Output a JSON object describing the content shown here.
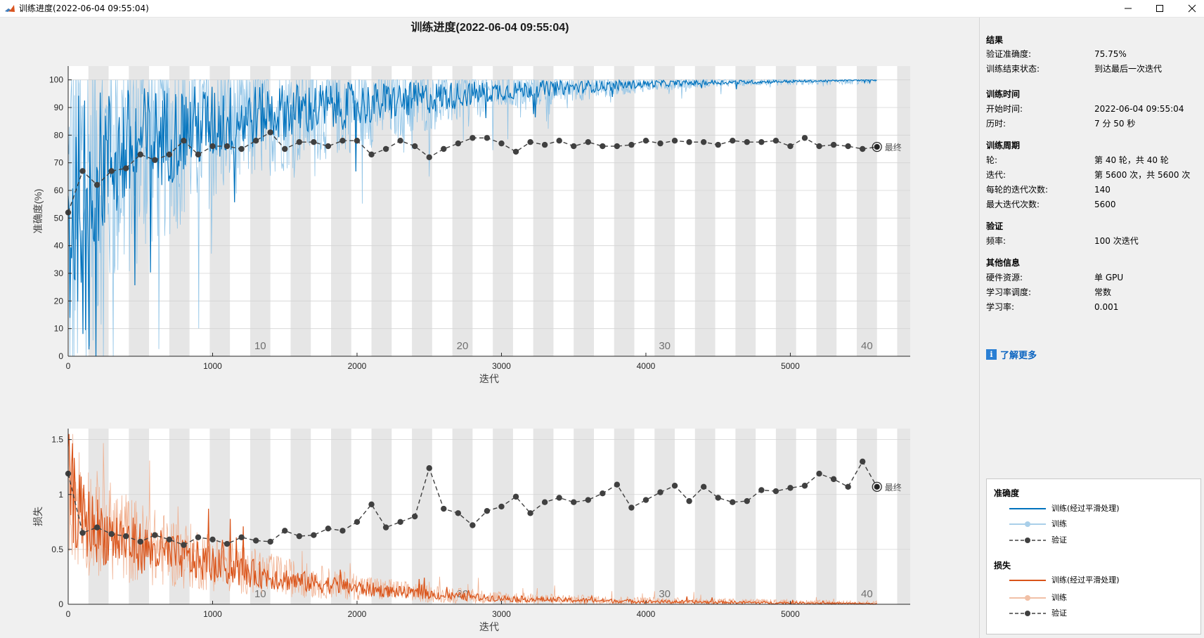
{
  "window": {
    "title": "训练进度(2022-06-04 09:55:04)",
    "controls": [
      "minimize-icon",
      "maximize-icon",
      "close-icon"
    ]
  },
  "figure": {
    "title": "训练进度(2022-06-04 09:55:04)",
    "final_label": "最终"
  },
  "colors": {
    "accuracy_train": "#0072bd",
    "accuracy_train_raw": "#8fc3e6",
    "loss_train": "#d95319",
    "loss_train_raw": "#f0b090",
    "validation": "#404040",
    "epoch_band": "#e6e6e6"
  },
  "chart_data": [
    {
      "type": "line",
      "title": "",
      "xlabel": "迭代",
      "ylabel": "准确度(%)",
      "xlim": [
        0,
        5830
      ],
      "ylim": [
        0,
        105
      ],
      "xticks": [
        0,
        1000,
        2000,
        3000,
        4000,
        5000
      ],
      "yticks": [
        0,
        10,
        20,
        30,
        40,
        50,
        60,
        70,
        80,
        90,
        100
      ],
      "epoch_labels": [
        10,
        20,
        30,
        40
      ],
      "iterations_per_epoch": 140,
      "grid": true,
      "series": [
        {
          "name": "训练(经过平滑处理)",
          "x": [
            0,
            50,
            100,
            150,
            200,
            300,
            400,
            500,
            600,
            700,
            800,
            1000,
            1200,
            1400,
            1600,
            1800,
            2000,
            2200,
            2400,
            2600,
            2800,
            3000,
            3200,
            3400,
            3600,
            3800,
            4000,
            4400,
            4800,
            5200,
            5600
          ],
          "values": [
            45,
            55,
            62,
            66,
            68,
            72,
            74,
            77,
            79,
            80,
            82,
            84,
            86,
            88,
            89,
            90,
            91,
            92,
            93,
            94,
            95,
            96,
            96.5,
            97,
            97.5,
            98,
            98.5,
            99,
            99.3,
            99.6,
            100
          ]
        },
        {
          "name": "验证",
          "x": [
            0,
            100,
            200,
            300,
            400,
            500,
            600,
            700,
            800,
            900,
            1000,
            1100,
            1200,
            1300,
            1400,
            1500,
            1600,
            1700,
            1800,
            1900,
            2000,
            2100,
            2200,
            2300,
            2400,
            2500,
            2600,
            2700,
            2800,
            2900,
            3000,
            3100,
            3200,
            3300,
            3400,
            3500,
            3600,
            3700,
            3800,
            3900,
            4000,
            4100,
            4200,
            4300,
            4400,
            4500,
            4600,
            4700,
            4800,
            4900,
            5000,
            5100,
            5200,
            5300,
            5400,
            5500,
            5600
          ],
          "values": [
            52,
            67,
            62,
            67,
            68,
            73,
            71,
            73,
            78,
            73,
            76,
            76,
            75,
            78,
            81,
            75,
            77.5,
            77.5,
            76,
            78,
            78,
            73,
            75,
            78,
            76,
            72,
            75,
            77,
            79,
            79,
            77,
            74,
            77.5,
            76.5,
            78,
            76,
            77.5,
            76,
            76,
            76.5,
            78,
            77,
            78,
            77.5,
            77.5,
            76.5,
            78,
            77.5,
            77.5,
            78,
            76,
            79,
            76,
            76.5,
            76,
            75,
            75.75
          ]
        }
      ],
      "final_value": 75.75
    },
    {
      "type": "line",
      "title": "",
      "xlabel": "迭代",
      "ylabel": "损失",
      "xlim": [
        0,
        5830
      ],
      "ylim": [
        0,
        1.6
      ],
      "xticks": [
        0,
        1000,
        2000,
        3000,
        4000,
        5000
      ],
      "yticks": [
        0,
        0.5,
        1,
        1.5
      ],
      "epoch_labels": [
        10,
        20,
        30,
        40
      ],
      "iterations_per_epoch": 140,
      "grid": true,
      "series": [
        {
          "name": "训练(经过平滑处理)",
          "x": [
            0,
            50,
            100,
            200,
            300,
            400,
            500,
            600,
            800,
            1000,
            1200,
            1400,
            1600,
            1800,
            2000,
            2200,
            2400,
            2600,
            2800,
            3000,
            3200,
            3400,
            3600,
            3800,
            4000,
            4400,
            4800,
            5200,
            5600
          ],
          "values": [
            1.2,
            0.9,
            0.78,
            0.68,
            0.62,
            0.57,
            0.52,
            0.48,
            0.42,
            0.36,
            0.3,
            0.25,
            0.21,
            0.18,
            0.15,
            0.12,
            0.1,
            0.08,
            0.065,
            0.055,
            0.045,
            0.04,
            0.035,
            0.03,
            0.025,
            0.02,
            0.015,
            0.01,
            0.005
          ]
        },
        {
          "name": "验证",
          "x": [
            0,
            100,
            200,
            300,
            400,
            500,
            600,
            700,
            800,
            900,
            1000,
            1100,
            1200,
            1300,
            1400,
            1500,
            1600,
            1700,
            1800,
            1900,
            2000,
            2100,
            2200,
            2300,
            2400,
            2500,
            2600,
            2700,
            2800,
            2900,
            3000,
            3100,
            3200,
            3300,
            3400,
            3500,
            3600,
            3700,
            3800,
            3900,
            4000,
            4100,
            4200,
            4300,
            4400,
            4500,
            4600,
            4700,
            4800,
            4900,
            5000,
            5100,
            5200,
            5300,
            5400,
            5500,
            5600
          ],
          "values": [
            1.19,
            0.65,
            0.7,
            0.64,
            0.62,
            0.57,
            0.63,
            0.59,
            0.54,
            0.61,
            0.59,
            0.55,
            0.61,
            0.58,
            0.57,
            0.67,
            0.62,
            0.63,
            0.69,
            0.67,
            0.75,
            0.91,
            0.7,
            0.75,
            0.8,
            1.24,
            0.87,
            0.83,
            0.72,
            0.85,
            0.89,
            0.98,
            0.83,
            0.93,
            0.97,
            0.93,
            0.95,
            1.01,
            1.09,
            0.88,
            0.95,
            1.02,
            1.08,
            0.94,
            1.07,
            0.97,
            0.93,
            0.94,
            1.04,
            1.03,
            1.06,
            1.08,
            1.19,
            1.14,
            1.07,
            1.3,
            1.07
          ]
        }
      ],
      "final_value": 1.07
    }
  ],
  "panel": {
    "results": {
      "title": "结果",
      "rows": [
        {
          "label": "验证准确度:",
          "value": "75.75%"
        },
        {
          "label": "训练结束状态:",
          "value": "到达最后一次迭代"
        }
      ]
    },
    "time": {
      "title": "训练时间",
      "rows": [
        {
          "label": "开始时间:",
          "value": "2022-06-04 09:55:04"
        },
        {
          "label": "历时:",
          "value": "7 分 50 秒"
        }
      ]
    },
    "cycle": {
      "title": "训练周期",
      "rows": [
        {
          "label": "轮:",
          "value": "第 40 轮，共 40 轮"
        },
        {
          "label": "迭代:",
          "value": "第 5600 次，共 5600 次"
        },
        {
          "label": "每轮的迭代次数:",
          "value": "140"
        },
        {
          "label": "最大迭代次数:",
          "value": "5600"
        }
      ]
    },
    "validation": {
      "title": "验证",
      "rows": [
        {
          "label": "频率:",
          "value": "100 次迭代"
        }
      ]
    },
    "other": {
      "title": "其他信息",
      "rows": [
        {
          "label": "硬件资源:",
          "value": "单 GPU"
        },
        {
          "label": "学习率调度:",
          "value": "常数"
        },
        {
          "label": "学习率:",
          "value": "0.001"
        }
      ]
    },
    "learn_more": "了解更多"
  },
  "legend": {
    "accuracy": {
      "title": "准确度",
      "items": [
        "训练(经过平滑处理)",
        "训练",
        "验证"
      ]
    },
    "loss": {
      "title": "损失",
      "items": [
        "训练(经过平滑处理)",
        "训练",
        "验证"
      ]
    }
  }
}
